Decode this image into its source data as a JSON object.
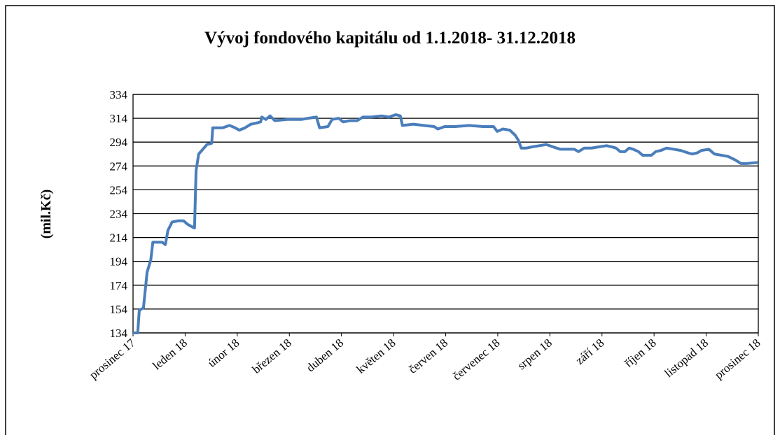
{
  "chart_data": {
    "type": "line",
    "title": "Vývoj fondového kapitálu od 1.1.2018- 31.12.2018",
    "y_label": "(mil.Kč)",
    "xlim": [
      0,
      12
    ],
    "xticks": [
      {
        "value": 0,
        "label": "prosinec 17"
      },
      {
        "value": 1,
        "label": "leden 18"
      },
      {
        "value": 2,
        "label": "únor 18"
      },
      {
        "value": 3,
        "label": "březen 18"
      },
      {
        "value": 4,
        "label": "duben 18"
      },
      {
        "value": 5,
        "label": "květen 18"
      },
      {
        "value": 6,
        "label": "červen 18"
      },
      {
        "value": 7,
        "label": "červenec 18"
      },
      {
        "value": 8,
        "label": "srpen 18"
      },
      {
        "value": 9,
        "label": "září 18"
      },
      {
        "value": 10,
        "label": "říjen 18"
      },
      {
        "value": 11,
        "label": "listopad 18"
      },
      {
        "value": 12,
        "label": "prosinec 18"
      }
    ],
    "ylim": [
      134,
      334
    ],
    "yticks": [
      134,
      154,
      174,
      194,
      214,
      234,
      254,
      274,
      294,
      314,
      334
    ],
    "grid": true,
    "x": [
      0,
      0.09,
      0.12,
      0.2,
      0.27,
      0.34,
      0.38,
      0.56,
      0.62,
      0.67,
      0.75,
      0.87,
      0.97,
      1.05,
      1.13,
      1.18,
      1.21,
      1.26,
      1.34,
      1.42,
      1.51,
      1.53,
      1.72,
      1.85,
      1.96,
      2.04,
      2.15,
      2.26,
      2.37,
      2.45,
      2.47,
      2.55,
      2.63,
      2.72,
      2.96,
      3.23,
      3.36,
      3.52,
      3.58,
      3.74,
      3.82,
      3.95,
      4.03,
      4.17,
      4.3,
      4.41,
      4.57,
      4.77,
      4.91,
      5.04,
      5.13,
      5.17,
      5.38,
      5.58,
      5.78,
      5.85,
      5.98,
      6.18,
      6.45,
      6.72,
      6.92,
      6.99,
      7.1,
      7.23,
      7.33,
      7.39,
      7.45,
      7.55,
      7.66,
      7.8,
      7.93,
      8.06,
      8.2,
      8.47,
      8.55,
      8.66,
      8.8,
      8.94,
      9.09,
      9.19,
      9.27,
      9.35,
      9.44,
      9.52,
      9.6,
      9.7,
      9.78,
      9.95,
      10.03,
      10.13,
      10.24,
      10.38,
      10.51,
      10.65,
      10.73,
      10.83,
      10.91,
      11.05,
      11.16,
      11.29,
      11.42,
      11.56,
      11.67,
      11.77,
      12
    ],
    "series": [
      {
        "color": "#4a7ebb",
        "values": [
          134,
          134,
          153,
          155,
          185,
          195,
          210,
          210,
          208,
          220,
          227,
          228,
          228,
          225,
          223,
          222,
          270,
          284,
          288,
          292,
          293,
          306,
          306,
          308,
          306,
          304,
          306,
          309,
          310,
          311,
          315,
          313,
          316,
          312,
          313,
          313,
          314,
          315,
          306,
          307,
          313,
          314,
          311,
          312,
          312,
          315,
          315,
          316,
          315,
          317,
          316,
          308,
          309,
          308,
          307,
          305,
          307,
          307,
          308,
          307,
          307,
          303,
          305,
          304,
          300,
          296,
          289,
          289,
          290,
          291,
          292,
          290,
          288,
          288,
          286,
          289,
          289,
          290,
          291,
          290,
          289,
          286,
          286,
          289,
          288,
          286,
          283,
          283,
          286,
          287,
          289,
          288,
          287,
          285,
          284,
          285,
          287,
          288,
          284,
          283,
          282,
          279,
          276,
          276,
          277
        ]
      }
    ]
  }
}
